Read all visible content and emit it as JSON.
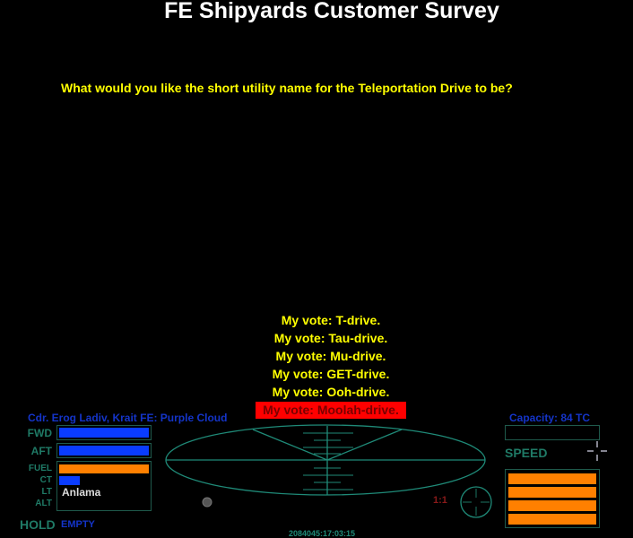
{
  "title": "FE Shipyards Customer Survey",
  "question": "What would you like the short utility name for the Teleportation Drive to be?",
  "options": [
    {
      "label": "My vote: T-drive.",
      "selected": false
    },
    {
      "label": "My vote: Tau-drive.",
      "selected": false
    },
    {
      "label": "My vote: Mu-drive.",
      "selected": false
    },
    {
      "label": "My vote: GET-drive.",
      "selected": false
    },
    {
      "label": "My vote: Ooh-drive.",
      "selected": false
    },
    {
      "label": "My vote: Moolah-drive.",
      "selected": true
    }
  ],
  "hud": {
    "commander": "Cdr. Erog Ladiv, Krait FE: Purple Cloud",
    "capacity": "Capacity: 84 TC",
    "labels": {
      "fwd": "FWD",
      "aft": "AFT",
      "fuel": "FUEL",
      "ct": "CT",
      "lt": "LT",
      "alt": "ALT",
      "speed": "SPEED",
      "hold": "HOLD"
    },
    "hold_status": "EMPTY",
    "system_name": "Anlama",
    "scanner_zoom": "1:1",
    "clock": "2084045:17:03:15",
    "levels": {
      "fwd": 1.0,
      "aft": 1.0,
      "fuel": 1.0,
      "ct": 0.23,
      "capacity_used": 0.0
    },
    "colors": {
      "shield": "#0a3cff",
      "fuel": "#ff8000",
      "hud_green": "#1f7a66",
      "selected_bg": "#ff0000",
      "text_yellow": "#ffff00"
    }
  }
}
